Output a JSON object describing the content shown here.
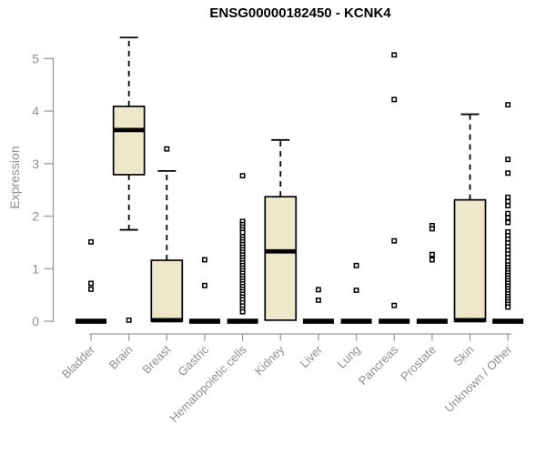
{
  "chart_data": {
    "type": "boxplot",
    "title": "ENSG00000182450 - KCNK4",
    "xlabel": "",
    "ylabel": "Expression",
    "yticks": [
      0,
      1,
      2,
      3,
      4,
      5
    ],
    "ylim": [
      0,
      5.5
    ],
    "grid": false,
    "legend": null,
    "categories": [
      "Bladder",
      "Brain",
      "Breast",
      "Gastric",
      "Hematopoietic cells",
      "Kidney",
      "Liver",
      "Lung",
      "Pancreas",
      "Prostate",
      "Skin",
      "Unknown / Other"
    ],
    "series": [
      {
        "category": "Bladder",
        "flat": true,
        "q1": 0,
        "median": 0,
        "q3": 0.02,
        "whisker_low": 0,
        "whisker_high": 0.02,
        "outliers": [
          1.51,
          0.72,
          0.61
        ]
      },
      {
        "category": "Brain",
        "flat": false,
        "q1": 2.79,
        "median": 3.64,
        "q3": 4.09,
        "whisker_low": 1.74,
        "whisker_high": 5.4,
        "outliers": [
          0.02
        ]
      },
      {
        "category": "Breast",
        "flat": false,
        "q1": 0,
        "median": 0.02,
        "q3": 1.16,
        "whisker_low": 0,
        "whisker_high": 2.86,
        "outliers": [
          3.28
        ]
      },
      {
        "category": "Gastric",
        "flat": true,
        "q1": 0,
        "median": 0,
        "q3": 0.02,
        "whisker_low": 0,
        "whisker_high": 0.02,
        "outliers": [
          1.17,
          0.68
        ]
      },
      {
        "category": "Hematopoietic cells",
        "flat": true,
        "q1": 0,
        "median": 0,
        "q3": 0.02,
        "whisker_low": 0,
        "whisker_high": 0.02,
        "outliers": [
          2.77,
          1.9,
          1.84,
          1.79,
          1.74,
          1.69,
          1.61,
          1.56,
          1.51,
          1.46,
          1.41,
          1.36,
          1.31,
          1.26,
          1.21,
          1.16,
          1.11,
          1.06,
          1.01,
          0.96,
          0.91,
          0.86,
          0.81,
          0.76,
          0.71,
          0.66,
          0.61,
          0.56,
          0.51,
          0.46,
          0.41,
          0.35,
          0.29,
          0.23,
          0.18
        ]
      },
      {
        "category": "Kidney",
        "flat": false,
        "q1": 0.02,
        "median": 1.33,
        "q3": 2.37,
        "whisker_low": 0.02,
        "whisker_high": 3.45,
        "outliers": []
      },
      {
        "category": "Liver",
        "flat": true,
        "q1": 0,
        "median": 0,
        "q3": 0.02,
        "whisker_low": 0,
        "whisker_high": 0.02,
        "outliers": [
          0.6,
          0.4
        ]
      },
      {
        "category": "Lung",
        "flat": true,
        "q1": 0,
        "median": 0,
        "q3": 0.02,
        "whisker_low": 0,
        "whisker_high": 0.02,
        "outliers": [
          1.06,
          0.59
        ]
      },
      {
        "category": "Pancreas",
        "flat": true,
        "q1": 0,
        "median": 0,
        "q3": 0.02,
        "whisker_low": 0,
        "whisker_high": 0.02,
        "outliers": [
          5.07,
          4.22,
          1.53,
          0.3
        ]
      },
      {
        "category": "Prostate",
        "flat": true,
        "q1": 0,
        "median": 0,
        "q3": 0.02,
        "whisker_low": 0,
        "whisker_high": 0.02,
        "outliers": [
          1.82,
          1.76,
          1.27,
          1.17
        ]
      },
      {
        "category": "Skin",
        "flat": false,
        "q1": 0,
        "median": 0.02,
        "q3": 2.31,
        "whisker_low": 0,
        "whisker_high": 3.94,
        "outliers": []
      },
      {
        "category": "Unknown / Other",
        "flat": true,
        "q1": 0,
        "median": 0,
        "q3": 0.02,
        "whisker_low": 0,
        "whisker_high": 0.02,
        "outliers": [
          4.12,
          3.08,
          2.82,
          2.36,
          2.28,
          2.2,
          2.05,
          1.97,
          1.88,
          1.7,
          1.63,
          1.56,
          1.49,
          1.42,
          1.35,
          1.28,
          1.21,
          1.14,
          1.07,
          1.02,
          0.97,
          0.92,
          0.87,
          0.82,
          0.77,
          0.72,
          0.67,
          0.62,
          0.57,
          0.52,
          0.47,
          0.42,
          0.37,
          0.32,
          0.27
        ]
      }
    ],
    "colors": {
      "box_fill": "#EDE8C9",
      "box_stroke": "#000000",
      "median": "#000000",
      "whisker": "#000000",
      "outlier": "#000000",
      "axis": "#9b9b9b",
      "tick_label": "#8f8f8f",
      "title": "#000000",
      "background": "#ffffff"
    }
  }
}
